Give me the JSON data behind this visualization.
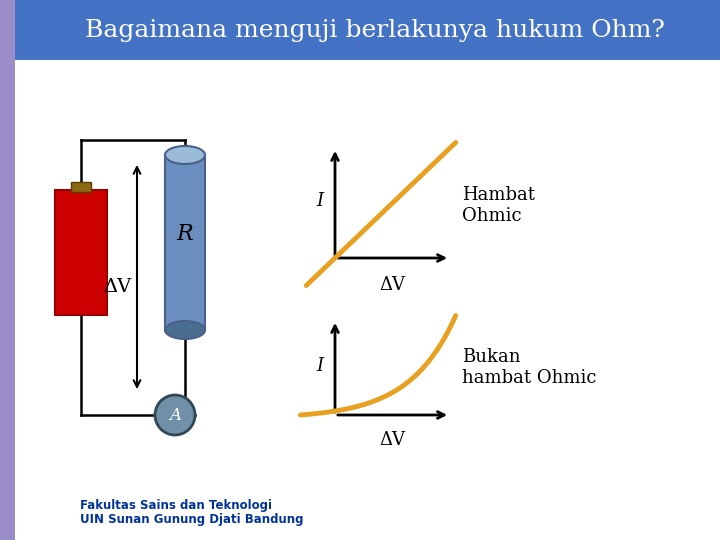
{
  "title": "Bagaimana menguji berlakunya hukum Ohm?",
  "title_bg": "#4472C4",
  "title_color": "#FFFFFF",
  "slide_bg": "#FFFFFF",
  "left_strip_color": "#9B8DC8",
  "graph1_label_I": "I",
  "graph1_label_V": "ΔV",
  "graph1_text": "Hambat\nOhmic",
  "graph2_label_I": "I",
  "graph2_label_V": "ΔV",
  "graph2_text": "Bukan\nhambat Ohmic",
  "curve_color": "#E8A020",
  "axis_color": "#000000",
  "circuit_line_color": "#000000",
  "resistor_color": "#6B8EC0",
  "resistor_top_color": "#9ABCD8",
  "resistor_bot_color": "#4A6E90",
  "battery_color": "#CC0000",
  "battery_cap_color": "#8B6914",
  "ammeter_color": "#7090A8",
  "label_R": "R",
  "label_dV": "ΔV",
  "footer_text1": "Fakultas Sains dan Teknologi",
  "footer_text2": "UIN Sunan Gunung Djati Bandung",
  "footer_color": "#003399"
}
